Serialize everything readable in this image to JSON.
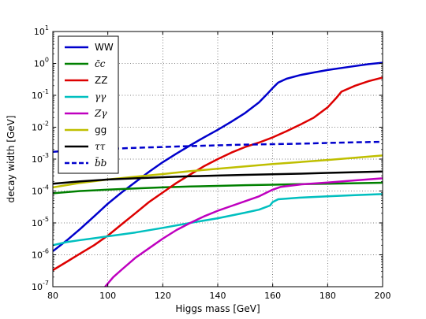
{
  "chart_data": {
    "type": "line",
    "xlabel": "Higgs mass [GeV]",
    "ylabel": "decay width [GeV]",
    "xlim": [
      80,
      200
    ],
    "ylim": [
      1e-07,
      10
    ],
    "yscale": "log",
    "grid": true,
    "legend_position": "top-left",
    "x_ticks": [
      "80",
      "100",
      "120",
      "140",
      "160",
      "180",
      "200"
    ],
    "y_ticks": [
      {
        "base": "10",
        "exp": "-7"
      },
      {
        "base": "10",
        "exp": "-6"
      },
      {
        "base": "10",
        "exp": "-5"
      },
      {
        "base": "10",
        "exp": "-4"
      },
      {
        "base": "10",
        "exp": "-3"
      },
      {
        "base": "10",
        "exp": "-2"
      },
      {
        "base": "10",
        "exp": "-1"
      },
      {
        "base": "10",
        "exp": "0"
      },
      {
        "base": "10",
        "exp": "1"
      }
    ],
    "series": [
      {
        "name": "WW",
        "math": false,
        "color": "#0000cc",
        "dash": false,
        "points": [
          [
            80,
            1.3e-06
          ],
          [
            85,
            2.8e-06
          ],
          [
            90,
            6.5e-06
          ],
          [
            95,
            1.6e-05
          ],
          [
            100,
            4e-05
          ],
          [
            105,
            9e-05
          ],
          [
            110,
            0.00019
          ],
          [
            115,
            0.0004
          ],
          [
            120,
            0.0008
          ],
          [
            125,
            0.0015
          ],
          [
            130,
            0.0027
          ],
          [
            135,
            0.0048
          ],
          [
            140,
            0.0083
          ],
          [
            145,
            0.015
          ],
          [
            150,
            0.028
          ],
          [
            155,
            0.06
          ],
          [
            158,
            0.11
          ],
          [
            160,
            0.17
          ],
          [
            162,
            0.25
          ],
          [
            165,
            0.33
          ],
          [
            170,
            0.43
          ],
          [
            175,
            0.52
          ],
          [
            180,
            0.62
          ],
          [
            185,
            0.72
          ],
          [
            190,
            0.83
          ],
          [
            195,
            0.95
          ],
          [
            200,
            1.05
          ]
        ]
      },
      {
        "name": "c̄c",
        "math": true,
        "color": "#008000",
        "dash": false,
        "points": [
          [
            80,
            8.5e-05
          ],
          [
            90,
            0.0001
          ],
          [
            100,
            0.00011
          ],
          [
            110,
            0.00012
          ],
          [
            120,
            0.00013
          ],
          [
            130,
            0.000138
          ],
          [
            140,
            0.000145
          ],
          [
            150,
            0.000152
          ],
          [
            160,
            0.000158
          ],
          [
            170,
            0.000164
          ],
          [
            180,
            0.00017
          ],
          [
            190,
            0.000176
          ],
          [
            200,
            0.000182
          ]
        ]
      },
      {
        "name": "ZZ",
        "math": false,
        "color": "#dd0000",
        "dash": false,
        "points": [
          [
            80,
            3.3e-07
          ],
          [
            85,
            6e-07
          ],
          [
            90,
            1.1e-06
          ],
          [
            95,
            2e-06
          ],
          [
            100,
            4e-06
          ],
          [
            105,
            9e-06
          ],
          [
            110,
            2e-05
          ],
          [
            115,
            4.5e-05
          ],
          [
            120,
            9e-05
          ],
          [
            125,
            0.00018
          ],
          [
            130,
            0.00033
          ],
          [
            135,
            0.0006
          ],
          [
            140,
            0.001
          ],
          [
            145,
            0.0016
          ],
          [
            150,
            0.0024
          ],
          [
            155,
            0.0033
          ],
          [
            160,
            0.0048
          ],
          [
            165,
            0.0075
          ],
          [
            170,
            0.012
          ],
          [
            175,
            0.02
          ],
          [
            180,
            0.042
          ],
          [
            183,
            0.08
          ],
          [
            185,
            0.13
          ],
          [
            190,
            0.2
          ],
          [
            195,
            0.28
          ],
          [
            200,
            0.36
          ]
        ]
      },
      {
        "name": "γγ",
        "math": true,
        "color": "#00bfbf",
        "dash": false,
        "points": [
          [
            80,
            2e-06
          ],
          [
            85,
            2.5e-06
          ],
          [
            90,
            2.9e-06
          ],
          [
            95,
            3.3e-06
          ],
          [
            100,
            3.8e-06
          ],
          [
            110,
            5e-06
          ],
          [
            120,
            7e-06
          ],
          [
            130,
            1e-05
          ],
          [
            140,
            1.4e-05
          ],
          [
            150,
            2.1e-05
          ],
          [
            155,
            2.6e-05
          ],
          [
            159,
            3.5e-05
          ],
          [
            160,
            4.5e-05
          ],
          [
            162,
            5.5e-05
          ],
          [
            170,
            6.2e-05
          ],
          [
            180,
            6.8e-05
          ],
          [
            190,
            7.4e-05
          ],
          [
            200,
            8e-05
          ]
        ]
      },
      {
        "name": "Zγ",
        "math": true,
        "color": "#bf00bf",
        "dash": false,
        "points": [
          [
            99,
            1e-07
          ],
          [
            102,
            2e-07
          ],
          [
            105,
            3.4e-07
          ],
          [
            110,
            8e-07
          ],
          [
            115,
            1.6e-06
          ],
          [
            120,
            3.2e-06
          ],
          [
            125,
            6e-06
          ],
          [
            130,
            1e-05
          ],
          [
            135,
            1.6e-05
          ],
          [
            140,
            2.4e-05
          ],
          [
            145,
            3.4e-05
          ],
          [
            150,
            4.8e-05
          ],
          [
            155,
            6.8e-05
          ],
          [
            160,
            0.00011
          ],
          [
            163,
            0.000135
          ],
          [
            170,
            0.00016
          ],
          [
            180,
            0.000185
          ],
          [
            190,
            0.000215
          ],
          [
            200,
            0.00025
          ]
        ]
      },
      {
        "name": "gg",
        "math": false,
        "color": "#bfbf00",
        "dash": false,
        "points": [
          [
            80,
            0.00013
          ],
          [
            90,
            0.00018
          ],
          [
            100,
            0.00023
          ],
          [
            110,
            0.00028
          ],
          [
            120,
            0.00034
          ],
          [
            130,
            0.00042
          ],
          [
            140,
            0.0005
          ],
          [
            150,
            0.00059
          ],
          [
            160,
            0.0007
          ],
          [
            170,
            0.00081
          ],
          [
            180,
            0.00094
          ],
          [
            190,
            0.0011
          ],
          [
            200,
            0.0013
          ]
        ]
      },
      {
        "name": "ττ",
        "math": true,
        "color": "#000000",
        "dash": false,
        "points": [
          [
            80,
            0.00017
          ],
          [
            90,
            0.0002
          ],
          [
            100,
            0.00023
          ],
          [
            110,
            0.00025
          ],
          [
            120,
            0.00027
          ],
          [
            130,
            0.00029
          ],
          [
            140,
            0.000305
          ],
          [
            150,
            0.00032
          ],
          [
            160,
            0.000335
          ],
          [
            170,
            0.00035
          ],
          [
            180,
            0.00037
          ],
          [
            190,
            0.00039
          ],
          [
            200,
            0.00041
          ]
        ]
      },
      {
        "name": "b̄b",
        "math": true,
        "color": "#0000cc",
        "dash": true,
        "points": [
          [
            80,
            0.0017
          ],
          [
            90,
            0.00195
          ],
          [
            100,
            0.0021
          ],
          [
            110,
            0.00225
          ],
          [
            120,
            0.0024
          ],
          [
            130,
            0.00255
          ],
          [
            140,
            0.0027
          ],
          [
            150,
            0.00285
          ],
          [
            160,
            0.00295
          ],
          [
            170,
            0.00305
          ],
          [
            180,
            0.0032
          ],
          [
            190,
            0.00335
          ],
          [
            200,
            0.0035
          ]
        ]
      }
    ]
  }
}
